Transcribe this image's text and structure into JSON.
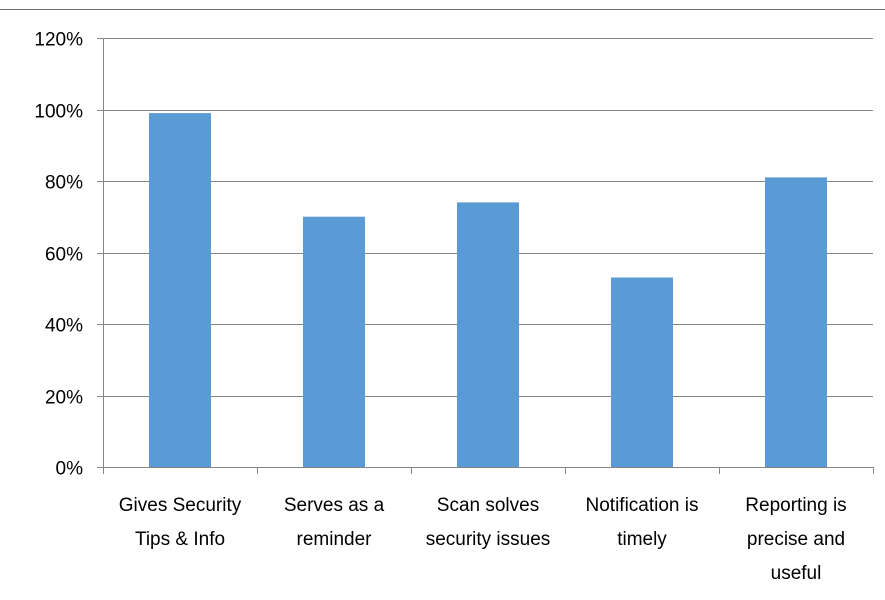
{
  "chart_data": {
    "type": "bar",
    "categories": [
      [
        "Gives Security",
        "Tips & Info"
      ],
      [
        "Serves as a",
        "reminder"
      ],
      [
        "Scan solves",
        "security issues"
      ],
      [
        "Notification is",
        "timely"
      ],
      [
        "Reporting is",
        "precise and",
        "useful"
      ]
    ],
    "values": [
      99,
      70,
      74,
      53,
      81
    ],
    "ylim": [
      0,
      120
    ],
    "yticks": [
      "0%",
      "20%",
      "40%",
      "60%",
      "80%",
      "100%",
      "120%"
    ],
    "title": "",
    "xlabel": "",
    "ylabel": "",
    "grid": true,
    "legend": "none",
    "bar_color": "#5b9bd5",
    "grid_color": "#868686"
  }
}
